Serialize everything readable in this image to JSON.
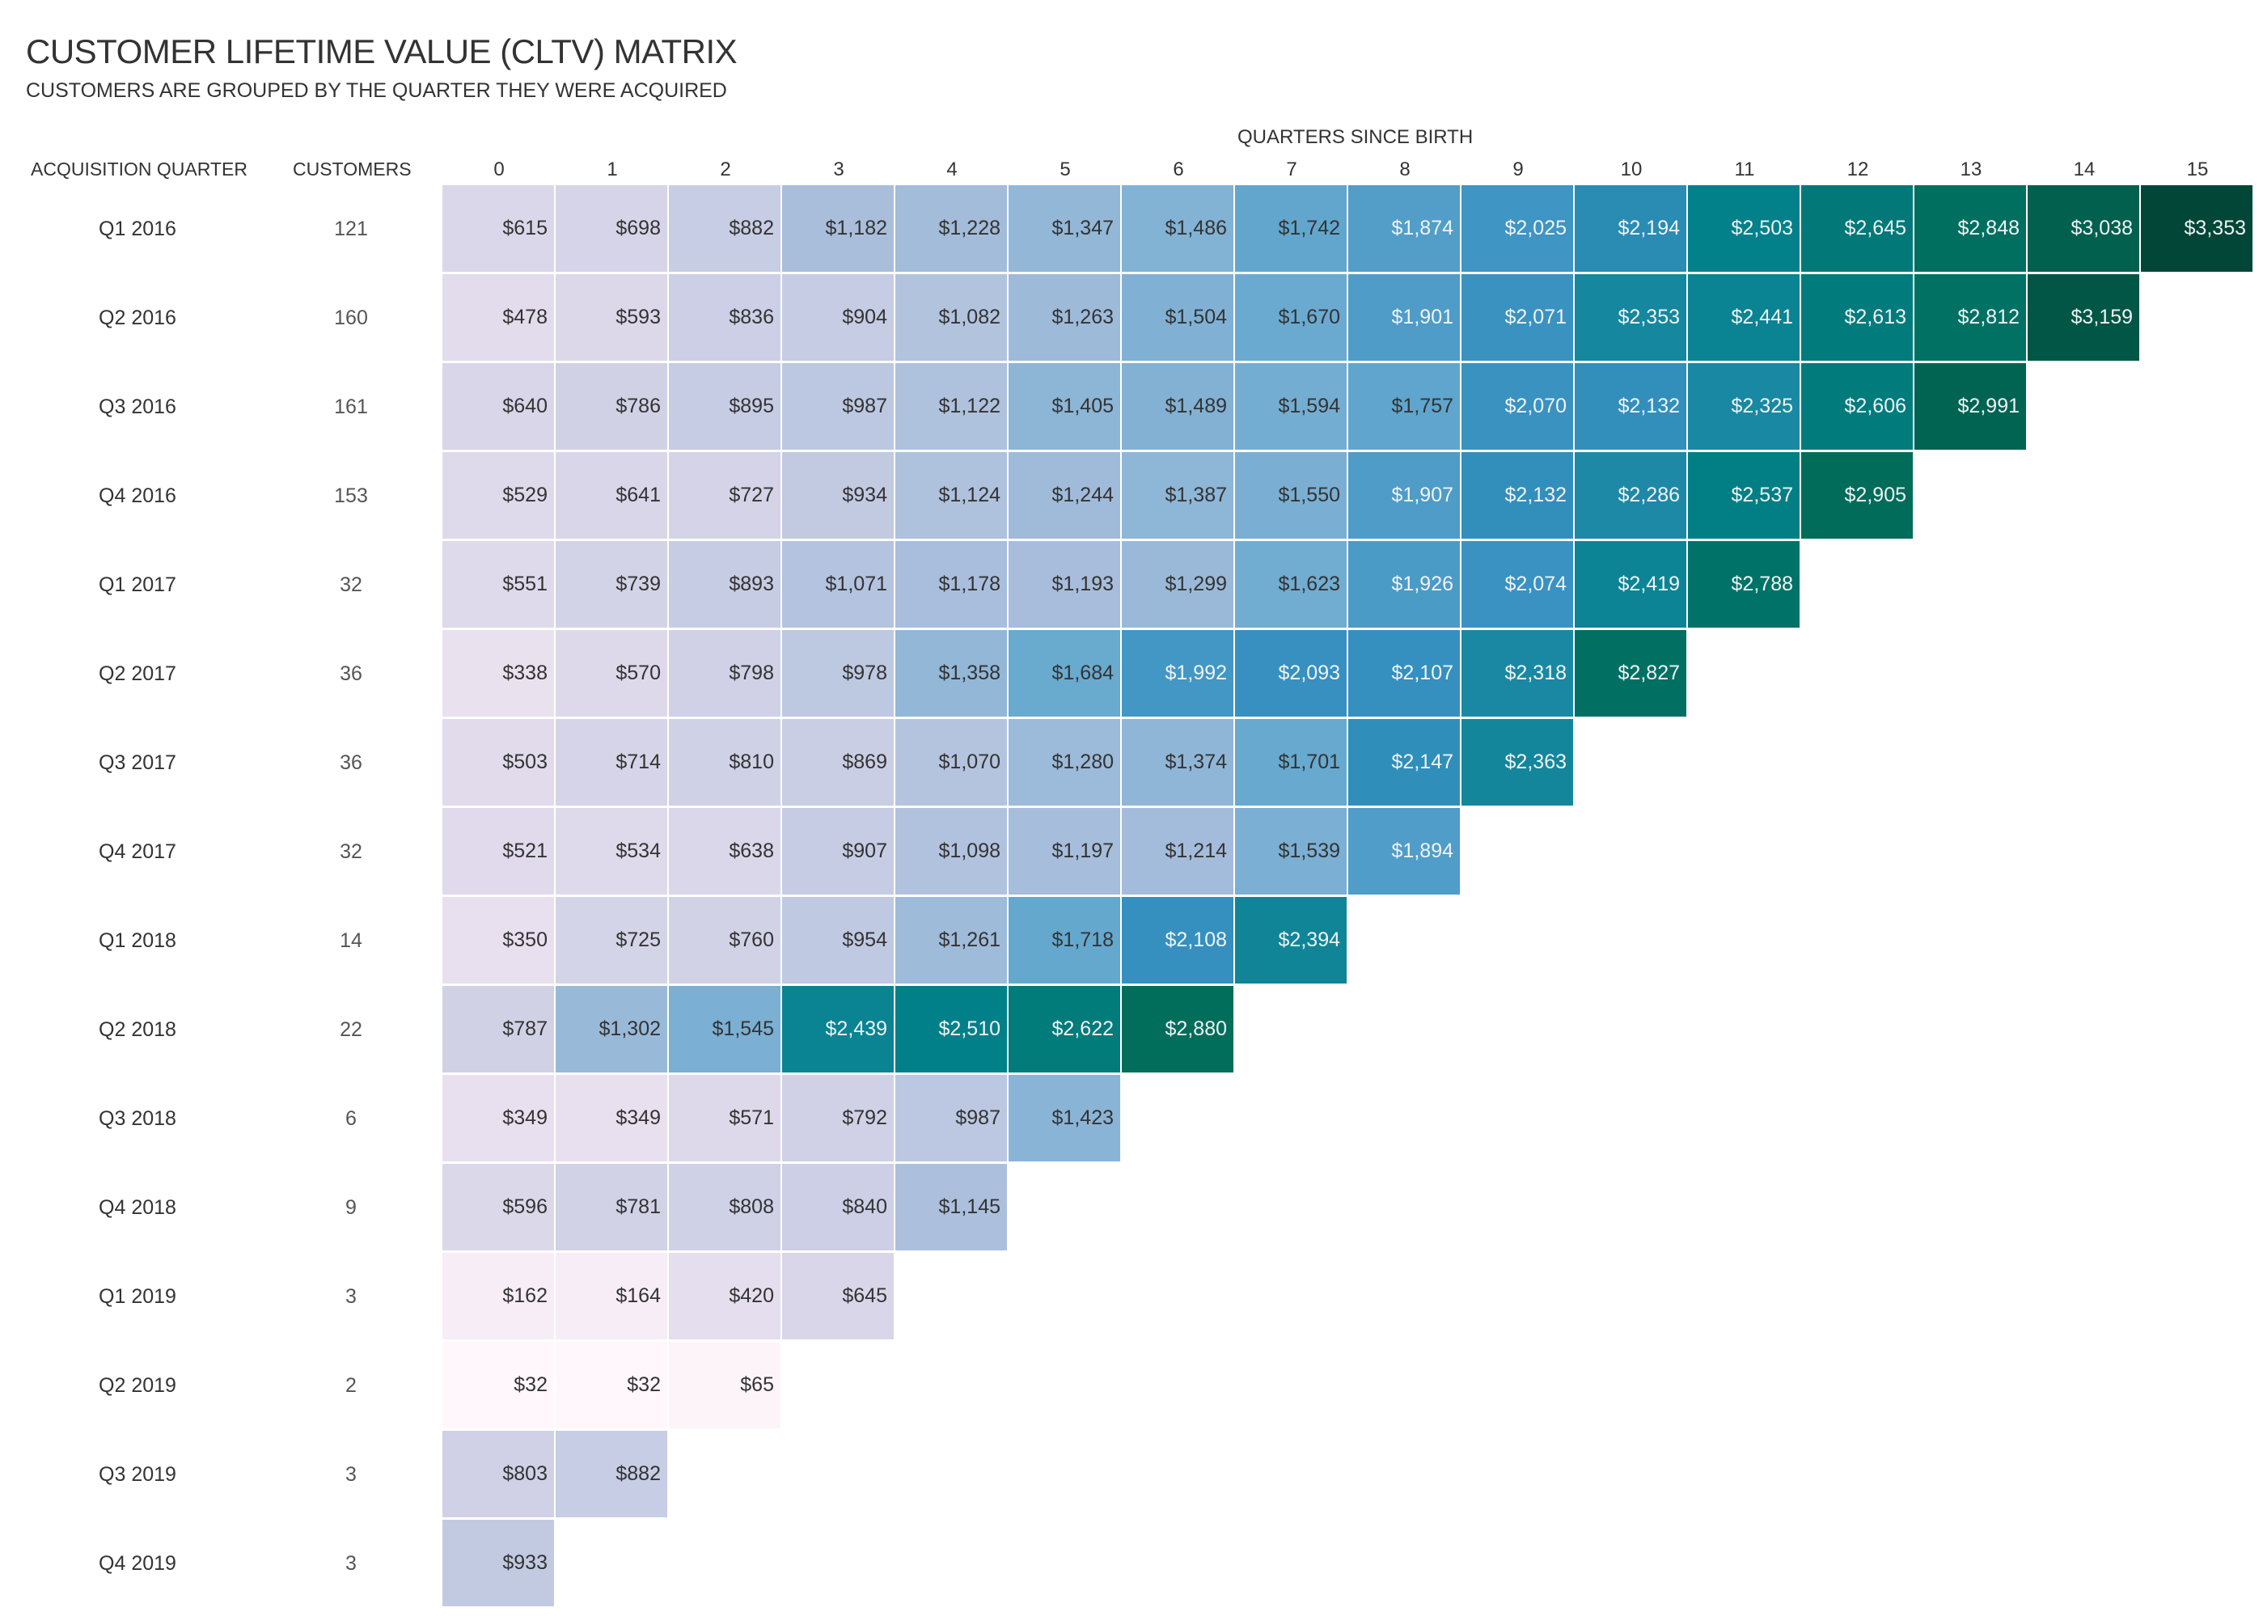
{
  "chart_data": {
    "type": "heatmap",
    "title": "CUSTOMER LIFETIME VALUE (CLTV) MATRIX",
    "subtitle": "CUSTOMERS ARE GROUPED BY THE QUARTER THEY WERE ACQUIRED",
    "xlabel": "QUARTERS SINCE BIRTH",
    "row_header": "ACQUISITION QUARTER",
    "customers_header": "CUSTOMERS",
    "columns": [
      "0",
      "1",
      "2",
      "3",
      "4",
      "5",
      "6",
      "7",
      "8",
      "9",
      "10",
      "11",
      "12",
      "13",
      "14",
      "15"
    ],
    "color_scale": [
      "#fff7fb",
      "#ece2f0",
      "#d0d1e6",
      "#a6bddb",
      "#67a9cf",
      "#3690c0",
      "#02818a",
      "#016c59",
      "#014636"
    ],
    "rows": [
      {
        "label": "Q1 2016",
        "customers": "121",
        "values": [
          615,
          698,
          882,
          1182,
          1228,
          1347,
          1486,
          1742,
          1874,
          2025,
          2194,
          2503,
          2645,
          2848,
          3038,
          3353
        ]
      },
      {
        "label": "Q2 2016",
        "customers": "160",
        "values": [
          478,
          593,
          836,
          904,
          1082,
          1263,
          1504,
          1670,
          1901,
          2071,
          2353,
          2441,
          2613,
          2812,
          3159
        ]
      },
      {
        "label": "Q3 2016",
        "customers": "161",
        "values": [
          640,
          786,
          895,
          987,
          1122,
          1405,
          1489,
          1594,
          1757,
          2070,
          2132,
          2325,
          2606,
          2991
        ]
      },
      {
        "label": "Q4 2016",
        "customers": "153",
        "values": [
          529,
          641,
          727,
          934,
          1124,
          1244,
          1387,
          1550,
          1907,
          2132,
          2286,
          2537,
          2905
        ]
      },
      {
        "label": "Q1 2017",
        "customers": "32",
        "values": [
          551,
          739,
          893,
          1071,
          1178,
          1193,
          1299,
          1623,
          1926,
          2074,
          2419,
          2788
        ]
      },
      {
        "label": "Q2 2017",
        "customers": "36",
        "values": [
          338,
          570,
          798,
          978,
          1358,
          1684,
          1992,
          2093,
          2107,
          2318,
          2827
        ]
      },
      {
        "label": "Q3 2017",
        "customers": "36",
        "values": [
          503,
          714,
          810,
          869,
          1070,
          1280,
          1374,
          1701,
          2147,
          2363
        ]
      },
      {
        "label": "Q4 2017",
        "customers": "32",
        "values": [
          521,
          534,
          638,
          907,
          1098,
          1197,
          1214,
          1539,
          1894
        ]
      },
      {
        "label": "Q1 2018",
        "customers": "14",
        "values": [
          350,
          725,
          760,
          954,
          1261,
          1718,
          2108,
          2394
        ]
      },
      {
        "label": "Q2 2018",
        "customers": "22",
        "values": [
          787,
          1302,
          1545,
          2439,
          2510,
          2622,
          2880
        ]
      },
      {
        "label": "Q3 2018",
        "customers": "6",
        "values": [
          349,
          349,
          571,
          792,
          987,
          1423
        ]
      },
      {
        "label": "Q4 2018",
        "customers": "9",
        "values": [
          596,
          781,
          808,
          840,
          1145
        ]
      },
      {
        "label": "Q1 2019",
        "customers": "3",
        "values": [
          162,
          164,
          420,
          645
        ]
      },
      {
        "label": "Q2 2019",
        "customers": "2",
        "values": [
          32,
          32,
          65
        ]
      },
      {
        "label": "Q3 2019",
        "customers": "3",
        "values": [
          803,
          882
        ]
      },
      {
        "label": "Q4 2019",
        "customers": "3",
        "values": [
          933
        ]
      }
    ]
  }
}
